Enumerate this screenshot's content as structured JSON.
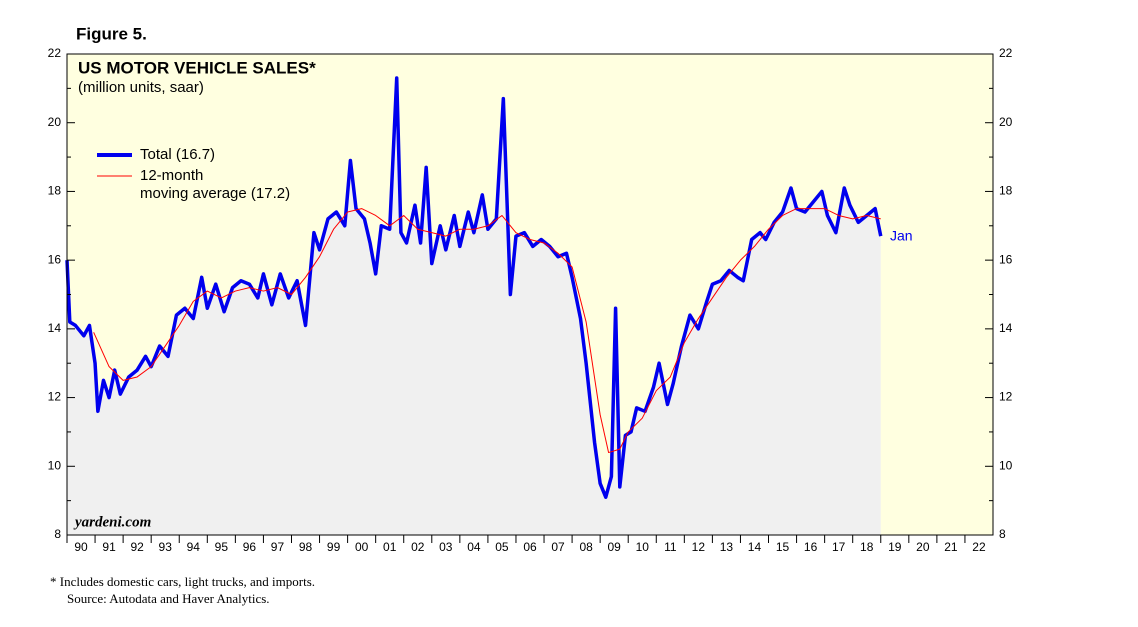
{
  "chart_data": {
    "type": "line",
    "figure_label": "Figure 5.",
    "title": "US MOTOR VEHICLE SALES*",
    "subtitle": "(million units, saar)",
    "annotations": [
      "Jan",
      "yardeni.com"
    ],
    "footnotes": [
      "*  Includes domestic cars, light trucks, and imports.",
      "Source: Autodata and Haver Analytics."
    ],
    "xlim": [
      1990,
      2023
    ],
    "ylim": [
      8,
      22
    ],
    "yticks": [
      8,
      10,
      12,
      14,
      16,
      18,
      20,
      22
    ],
    "xticks": [
      {
        "value": 1990,
        "label": "90"
      },
      {
        "value": 1991,
        "label": "91"
      },
      {
        "value": 1992,
        "label": "92"
      },
      {
        "value": 1993,
        "label": "93"
      },
      {
        "value": 1994,
        "label": "94"
      },
      {
        "value": 1995,
        "label": "95"
      },
      {
        "value": 1996,
        "label": "96"
      },
      {
        "value": 1997,
        "label": "97"
      },
      {
        "value": 1998,
        "label": "98"
      },
      {
        "value": 1999,
        "label": "99"
      },
      {
        "value": 2000,
        "label": "00"
      },
      {
        "value": 2001,
        "label": "01"
      },
      {
        "value": 2002,
        "label": "02"
      },
      {
        "value": 2003,
        "label": "03"
      },
      {
        "value": 2004,
        "label": "04"
      },
      {
        "value": 2005,
        "label": "05"
      },
      {
        "value": 2006,
        "label": "06"
      },
      {
        "value": 2007,
        "label": "07"
      },
      {
        "value": 2008,
        "label": "08"
      },
      {
        "value": 2009,
        "label": "09"
      },
      {
        "value": 2010,
        "label": "10"
      },
      {
        "value": 2011,
        "label": "11"
      },
      {
        "value": 2012,
        "label": "12"
      },
      {
        "value": 2013,
        "label": "13"
      },
      {
        "value": 2014,
        "label": "14"
      },
      {
        "value": 2015,
        "label": "15"
      },
      {
        "value": 2016,
        "label": "16"
      },
      {
        "value": 2017,
        "label": "17"
      },
      {
        "value": 2018,
        "label": "18"
      },
      {
        "value": 2019,
        "label": "19"
      },
      {
        "value": 2020,
        "label": "20"
      },
      {
        "value": 2021,
        "label": "21"
      },
      {
        "value": 2022,
        "label": "22"
      }
    ],
    "series": [
      {
        "name": "Total (16.7)",
        "color": "#0000ee",
        "fill": true,
        "x": [
          1990.0,
          1990.1,
          1990.3,
          1990.6,
          1990.8,
          1991.0,
          1991.1,
          1991.3,
          1991.5,
          1991.7,
          1991.9,
          1992.2,
          1992.5,
          1992.8,
          1993.0,
          1993.3,
          1993.6,
          1993.9,
          1994.2,
          1994.5,
          1994.8,
          1995.0,
          1995.3,
          1995.6,
          1995.9,
          1996.2,
          1996.5,
          1996.8,
          1997.0,
          1997.3,
          1997.6,
          1997.9,
          1998.2,
          1998.5,
          1998.8,
          1999.0,
          1999.3,
          1999.6,
          1999.9,
          2000.1,
          2000.3,
          2000.6,
          2000.8,
          2001.0,
          2001.2,
          2001.5,
          2001.75,
          2001.9,
          2002.1,
          2002.4,
          2002.6,
          2002.8,
          2003.0,
          2003.3,
          2003.5,
          2003.8,
          2004.0,
          2004.3,
          2004.5,
          2004.8,
          2005.0,
          2005.3,
          2005.55,
          2005.8,
          2006.0,
          2006.3,
          2006.6,
          2006.9,
          2007.2,
          2007.5,
          2007.8,
          2008.0,
          2008.3,
          2008.5,
          2008.8,
          2009.0,
          2009.2,
          2009.4,
          2009.55,
          2009.7,
          2009.9,
          2010.1,
          2010.3,
          2010.6,
          2010.9,
          2011.1,
          2011.4,
          2011.6,
          2011.9,
          2012.2,
          2012.5,
          2012.8,
          2013.0,
          2013.3,
          2013.6,
          2013.9,
          2014.1,
          2014.4,
          2014.7,
          2014.9,
          2015.2,
          2015.5,
          2015.8,
          2016.0,
          2016.3,
          2016.6,
          2016.9,
          2017.1,
          2017.4,
          2017.7,
          2017.9,
          2018.2,
          2018.5,
          2018.8,
          2019.0
        ],
        "values": [
          16.0,
          14.2,
          14.1,
          13.8,
          14.1,
          13.0,
          11.6,
          12.5,
          12.0,
          12.8,
          12.1,
          12.6,
          12.8,
          13.2,
          12.9,
          13.5,
          13.2,
          14.4,
          14.6,
          14.3,
          15.5,
          14.6,
          15.3,
          14.5,
          15.2,
          15.4,
          15.3,
          14.9,
          15.6,
          14.7,
          15.6,
          14.9,
          15.4,
          14.1,
          16.8,
          16.3,
          17.2,
          17.4,
          17.0,
          18.9,
          17.5,
          17.2,
          16.5,
          15.6,
          17.0,
          16.9,
          21.3,
          16.8,
          16.5,
          17.6,
          16.5,
          18.7,
          15.9,
          17.0,
          16.3,
          17.3,
          16.4,
          17.4,
          16.8,
          17.9,
          16.9,
          17.2,
          20.7,
          15.0,
          16.7,
          16.8,
          16.4,
          16.6,
          16.4,
          16.1,
          16.2,
          15.5,
          14.3,
          13.0,
          10.7,
          9.5,
          9.1,
          9.7,
          14.6,
          9.4,
          10.9,
          11.0,
          11.7,
          11.6,
          12.3,
          13.0,
          11.8,
          12.4,
          13.5,
          14.4,
          14.0,
          14.8,
          15.3,
          15.4,
          15.7,
          15.5,
          15.4,
          16.6,
          16.8,
          16.6,
          17.1,
          17.4,
          18.1,
          17.5,
          17.4,
          17.7,
          18.0,
          17.3,
          16.8,
          18.1,
          17.6,
          17.1,
          17.3,
          17.5,
          16.7
        ]
      },
      {
        "name": "12-month\nmoving average (17.2)",
        "color": "#ff0000",
        "fill": false,
        "x": [
          1990.95,
          1991.5,
          1992.0,
          1992.5,
          1993.0,
          1993.5,
          1994.0,
          1994.5,
          1995.0,
          1995.5,
          1996.0,
          1996.5,
          1997.0,
          1997.5,
          1998.0,
          1998.5,
          1999.0,
          1999.5,
          2000.0,
          2000.5,
          2001.0,
          2001.5,
          2002.0,
          2002.5,
          2003.0,
          2003.5,
          2004.0,
          2004.5,
          2005.0,
          2005.5,
          2006.0,
          2006.5,
          2007.0,
          2007.5,
          2008.0,
          2008.5,
          2009.0,
          2009.3,
          2009.7,
          2010.0,
          2010.5,
          2011.0,
          2011.5,
          2012.0,
          2012.5,
          2013.0,
          2013.5,
          2014.0,
          2014.5,
          2015.0,
          2015.5,
          2016.0,
          2016.5,
          2017.0,
          2017.5,
          2018.0,
          2018.5,
          2019.0
        ],
        "values": [
          13.9,
          12.9,
          12.5,
          12.6,
          12.9,
          13.5,
          14.1,
          14.8,
          15.1,
          14.9,
          15.1,
          15.2,
          15.1,
          15.2,
          15.0,
          15.5,
          16.1,
          16.9,
          17.4,
          17.5,
          17.3,
          17.0,
          17.3,
          16.9,
          16.8,
          16.7,
          16.9,
          16.9,
          17.0,
          17.3,
          16.8,
          16.6,
          16.5,
          16.2,
          15.8,
          14.2,
          11.5,
          10.4,
          10.5,
          11.0,
          11.4,
          12.2,
          12.6,
          13.6,
          14.3,
          14.9,
          15.5,
          16.0,
          16.4,
          16.9,
          17.3,
          17.5,
          17.5,
          17.5,
          17.3,
          17.2,
          17.3,
          17.2
        ]
      }
    ]
  }
}
